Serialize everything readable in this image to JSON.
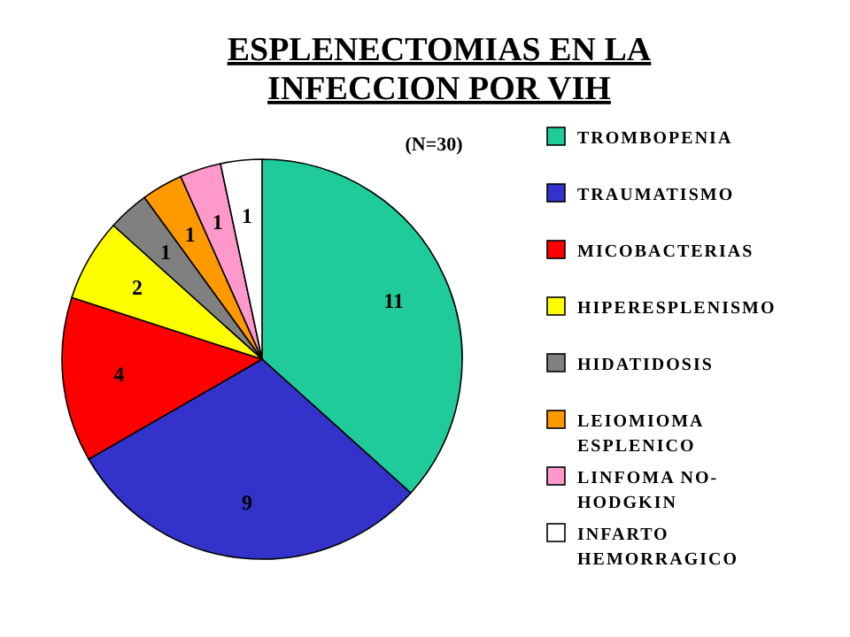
{
  "chart_data": {
    "type": "pie",
    "title": "ESPLENECTOMIAS EN LA INFECCION POR VIH",
    "subtitle": "(N=30)",
    "categories": [
      "TROMBOPENIA",
      "TRAUMATISMO",
      "MICOBACTERIAS",
      "HIPERESPLENISMO",
      "HIDATIDOSIS",
      "LEIOMIOMA ESPLENICO",
      "LINFOMA NO-HODGKIN",
      "INFARTO HEMORRAGICO"
    ],
    "values": [
      11,
      9,
      4,
      2,
      1,
      1,
      1,
      1
    ],
    "colors": [
      "#1fcc99",
      "#3333cc",
      "#ff0000",
      "#ffff00",
      "#808080",
      "#ff9900",
      "#ff99cc",
      "#ffffff"
    ],
    "data_labels": true,
    "legend": "right"
  }
}
